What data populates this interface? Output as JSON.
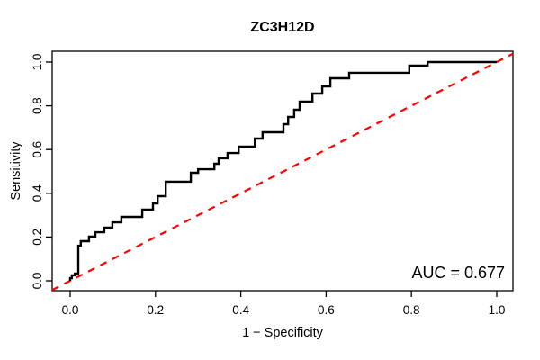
{
  "chart_data": {
    "type": "line",
    "subtype": "roc-step-curve",
    "title": "ZC3H12D",
    "xlabel": "1 − Specificity",
    "ylabel": "Sensitivity",
    "xlim": [
      0,
      1
    ],
    "ylim": [
      0,
      1
    ],
    "grid": false,
    "legend": "none",
    "annotation": "AUC = 0.677",
    "auc_value": 0.677,
    "x_ticks": {
      "values": [
        0,
        0.2,
        0.4,
        0.6,
        0.8,
        1.0
      ],
      "labels": [
        "0.0",
        "0.2",
        "0.4",
        "0.6",
        "0.8",
        "1.0"
      ]
    },
    "y_ticks": {
      "values": [
        0,
        0.2,
        0.4,
        0.6,
        0.8,
        1.0
      ],
      "labels": [
        "0.0",
        "0.2",
        "0.4",
        "0.6",
        "0.8",
        "1.0"
      ]
    },
    "reference_line": {
      "from": [
        0,
        0
      ],
      "to": [
        1,
        1
      ],
      "color": "#ff0000",
      "style": "dashed"
    },
    "series": [
      {
        "name": "ROC curve",
        "color": "#000000",
        "points": [
          [
            0.0,
            0.0
          ],
          [
            0.0,
            0.012
          ],
          [
            0.004,
            0.012
          ],
          [
            0.004,
            0.025
          ],
          [
            0.011,
            0.025
          ],
          [
            0.011,
            0.033
          ],
          [
            0.019,
            0.033
          ],
          [
            0.019,
            0.16
          ],
          [
            0.025,
            0.16
          ],
          [
            0.025,
            0.181
          ],
          [
            0.044,
            0.181
          ],
          [
            0.044,
            0.202
          ],
          [
            0.059,
            0.202
          ],
          [
            0.059,
            0.222
          ],
          [
            0.08,
            0.222
          ],
          [
            0.08,
            0.243
          ],
          [
            0.099,
            0.243
          ],
          [
            0.099,
            0.267
          ],
          [
            0.12,
            0.267
          ],
          [
            0.12,
            0.292
          ],
          [
            0.169,
            0.292
          ],
          [
            0.169,
            0.325
          ],
          [
            0.194,
            0.325
          ],
          [
            0.194,
            0.354
          ],
          [
            0.205,
            0.354
          ],
          [
            0.205,
            0.387
          ],
          [
            0.224,
            0.387
          ],
          [
            0.224,
            0.453
          ],
          [
            0.283,
            0.453
          ],
          [
            0.283,
            0.494
          ],
          [
            0.3,
            0.494
          ],
          [
            0.3,
            0.51
          ],
          [
            0.338,
            0.51
          ],
          [
            0.338,
            0.535
          ],
          [
            0.348,
            0.535
          ],
          [
            0.348,
            0.56
          ],
          [
            0.369,
            0.56
          ],
          [
            0.369,
            0.584
          ],
          [
            0.395,
            0.584
          ],
          [
            0.395,
            0.613
          ],
          [
            0.433,
            0.613
          ],
          [
            0.433,
            0.65
          ],
          [
            0.451,
            0.65
          ],
          [
            0.451,
            0.679
          ],
          [
            0.5,
            0.679
          ],
          [
            0.5,
            0.716
          ],
          [
            0.511,
            0.716
          ],
          [
            0.511,
            0.749
          ],
          [
            0.525,
            0.749
          ],
          [
            0.525,
            0.782
          ],
          [
            0.538,
            0.782
          ],
          [
            0.538,
            0.819
          ],
          [
            0.568,
            0.819
          ],
          [
            0.568,
            0.856
          ],
          [
            0.591,
            0.856
          ],
          [
            0.591,
            0.889
          ],
          [
            0.61,
            0.889
          ],
          [
            0.61,
            0.926
          ],
          [
            0.654,
            0.926
          ],
          [
            0.654,
            0.951
          ],
          [
            0.795,
            0.951
          ],
          [
            0.795,
            0.984
          ],
          [
            0.838,
            0.984
          ],
          [
            0.838,
            1.0
          ],
          [
            1.0,
            1.0
          ]
        ]
      }
    ],
    "colors": {
      "curve": "#000000",
      "reference": "#ff0000",
      "axis": "#000000",
      "background": "#ffffff"
    }
  }
}
